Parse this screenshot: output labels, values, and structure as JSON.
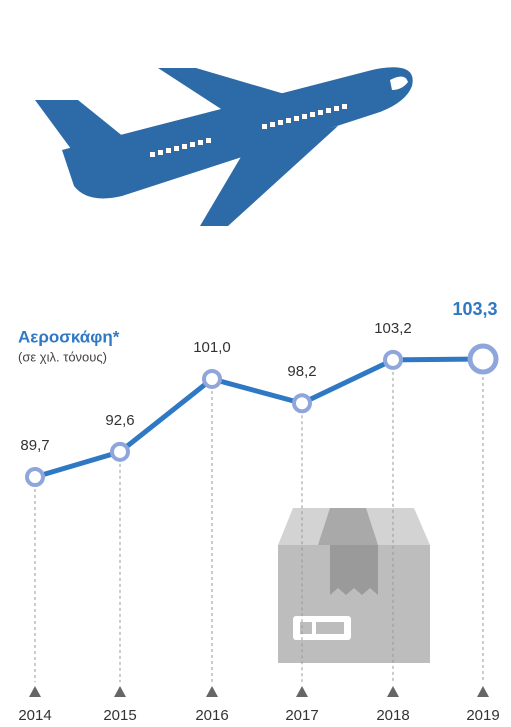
{
  "chart_data": {
    "type": "line",
    "title": "Αεροσκάφη*",
    "subtitle": "(σε χιλ. τόνους)",
    "categories": [
      "2014",
      "2015",
      "2016",
      "2017",
      "2018",
      "2019"
    ],
    "values": [
      89.7,
      92.6,
      101.0,
      98.2,
      103.2,
      103.3
    ],
    "value_labels": [
      "89,7",
      "92,6",
      "101,0",
      "98,2",
      "103,2",
      "103,3"
    ],
    "color": "#2f78c4",
    "marker_color": "#8fa6dc"
  }
}
